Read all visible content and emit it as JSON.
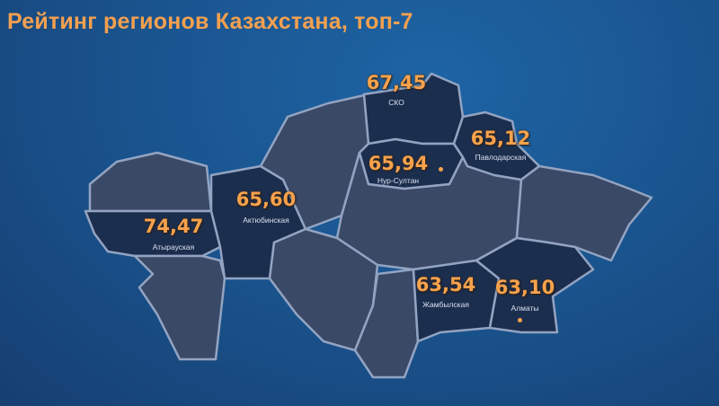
{
  "title": "Рейтинг регионов Казахстана, топ-7",
  "colors": {
    "highlight_region": "#1c2e4e",
    "other_region": "#3a4966",
    "border": "#93a4c2",
    "value_text": "#f7a24c",
    "background": "#1a5590"
  },
  "regions": [
    {
      "name": "Атырауская",
      "value": "74,47"
    },
    {
      "name": "Актюбинская",
      "value": "65,60"
    },
    {
      "name": "СКО",
      "value": "67,45"
    },
    {
      "name": "Нур-Султан",
      "value": "65,94"
    },
    {
      "name": "Павлодарская",
      "value": "65,12"
    },
    {
      "name": "Жамбылская",
      "value": "63,54"
    },
    {
      "name": "Алматы",
      "value": "63,10"
    }
  ]
}
